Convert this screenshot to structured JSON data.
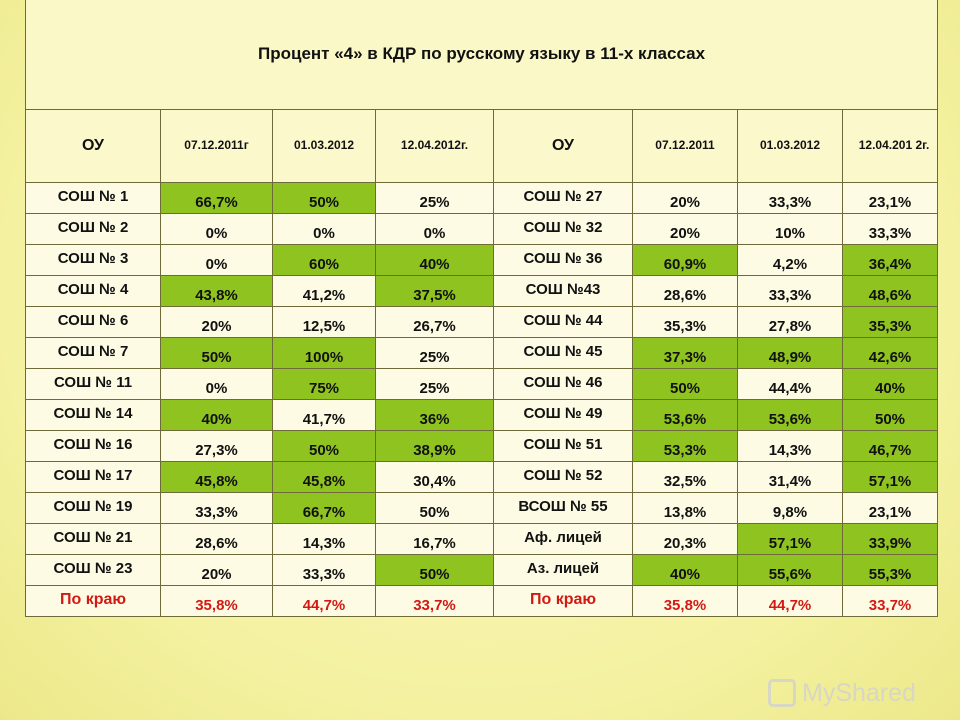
{
  "title": "Процент «4» в КДР по русскому языку в 11-х классах",
  "headers": {
    "left": [
      "ОУ",
      "07.12.2011г",
      "01.03.2012",
      "12.04.2012г."
    ],
    "right": [
      "ОУ",
      "07.12.2011",
      "01.03.2012",
      "12.04.201 2г."
    ]
  },
  "highlight_color": "#8fc31f",
  "total_color": "#d21a14",
  "rows": [
    {
      "l": {
        "name": "СОШ № 1",
        "v": [
          "66,7%",
          "50%",
          "25%"
        ],
        "hl": [
          1,
          1,
          0
        ]
      },
      "r": {
        "name": "СОШ № 27",
        "v": [
          "20%",
          "33,3%",
          "23,1%"
        ],
        "hl": [
          0,
          0,
          0
        ]
      }
    },
    {
      "l": {
        "name": "СОШ № 2",
        "v": [
          "0%",
          "0%",
          "0%"
        ],
        "hl": [
          0,
          0,
          0
        ]
      },
      "r": {
        "name": "СОШ № 32",
        "v": [
          "20%",
          "10%",
          "33,3%"
        ],
        "hl": [
          0,
          0,
          0
        ]
      }
    },
    {
      "l": {
        "name": "СОШ № 3",
        "v": [
          "0%",
          "60%",
          "40%"
        ],
        "hl": [
          0,
          1,
          1
        ]
      },
      "r": {
        "name": "СОШ № 36",
        "v": [
          "60,9%",
          "4,2%",
          "36,4%"
        ],
        "hl": [
          1,
          0,
          1
        ]
      }
    },
    {
      "l": {
        "name": "СОШ № 4",
        "v": [
          "43,8%",
          "41,2%",
          "37,5%"
        ],
        "hl": [
          1,
          0,
          1
        ]
      },
      "r": {
        "name": "СОШ №43",
        "v": [
          "28,6%",
          "33,3%",
          "48,6%"
        ],
        "hl": [
          0,
          0,
          1
        ]
      }
    },
    {
      "l": {
        "name": "СОШ № 6",
        "v": [
          "20%",
          "12,5%",
          "26,7%"
        ],
        "hl": [
          0,
          0,
          0
        ]
      },
      "r": {
        "name": "СОШ № 44",
        "v": [
          "35,3%",
          "27,8%",
          "35,3%"
        ],
        "hl": [
          0,
          0,
          1
        ]
      }
    },
    {
      "l": {
        "name": "СОШ № 7",
        "v": [
          "50%",
          "100%",
          "25%"
        ],
        "hl": [
          1,
          1,
          0
        ]
      },
      "r": {
        "name": "СОШ № 45",
        "v": [
          "37,3%",
          "48,9%",
          "42,6%"
        ],
        "hl": [
          1,
          1,
          1
        ]
      }
    },
    {
      "l": {
        "name": "СОШ № 11",
        "v": [
          "0%",
          "75%",
          "25%"
        ],
        "hl": [
          0,
          1,
          0
        ]
      },
      "r": {
        "name": "СОШ № 46",
        "v": [
          "50%",
          "44,4%",
          "40%"
        ],
        "hl": [
          1,
          0,
          1
        ]
      }
    },
    {
      "l": {
        "name": "СОШ № 14",
        "v": [
          "40%",
          "41,7%",
          "36%"
        ],
        "hl": [
          1,
          0,
          1
        ]
      },
      "r": {
        "name": "СОШ №  49",
        "v": [
          "53,6%",
          "53,6%",
          "50%"
        ],
        "hl": [
          1,
          1,
          1
        ]
      }
    },
    {
      "l": {
        "name": "СОШ № 16",
        "v": [
          "27,3%",
          "50%",
          "38,9%"
        ],
        "hl": [
          0,
          1,
          1
        ]
      },
      "r": {
        "name": "СОШ № 51",
        "v": [
          "53,3%",
          "14,3%",
          "46,7%"
        ],
        "hl": [
          1,
          0,
          1
        ]
      }
    },
    {
      "l": {
        "name": "СОШ № 17",
        "v": [
          "45,8%",
          "45,8%",
          "30,4%"
        ],
        "hl": [
          1,
          1,
          0
        ]
      },
      "r": {
        "name": "СОШ № 52",
        "v": [
          "32,5%",
          "31,4%",
          "57,1%"
        ],
        "hl": [
          0,
          0,
          1
        ]
      }
    },
    {
      "l": {
        "name": "СОШ № 19",
        "v": [
          "33,3%",
          "66,7%",
          "50%"
        ],
        "hl": [
          0,
          1,
          0
        ]
      },
      "r": {
        "name": "ВСОШ № 55",
        "v": [
          "13,8%",
          "9,8%",
          "23,1%"
        ],
        "hl": [
          0,
          0,
          0
        ]
      }
    },
    {
      "l": {
        "name": "СОШ № 21",
        "v": [
          "28,6%",
          "14,3%",
          "16,7%"
        ],
        "hl": [
          0,
          0,
          0
        ]
      },
      "r": {
        "name": "Аф. лицей",
        "v": [
          "20,3%",
          "57,1%",
          "33,9%"
        ],
        "hl": [
          0,
          1,
          1
        ]
      }
    },
    {
      "l": {
        "name": "СОШ № 23",
        "v": [
          "20%",
          "33,3%",
          "50%"
        ],
        "hl": [
          0,
          0,
          1
        ]
      },
      "r": {
        "name": "Аз. лицей",
        "v": [
          "40%",
          "55,6%",
          "55,3%"
        ],
        "hl": [
          1,
          1,
          1
        ]
      }
    }
  ],
  "total": {
    "l": {
      "name": "По краю",
      "v": [
        "35,8%",
        "44,7%",
        "33,7%"
      ]
    },
    "r": {
      "name": "По краю",
      "v": [
        "35,8%",
        "44,7%",
        "33,7%"
      ]
    }
  },
  "watermark": "MyShared"
}
